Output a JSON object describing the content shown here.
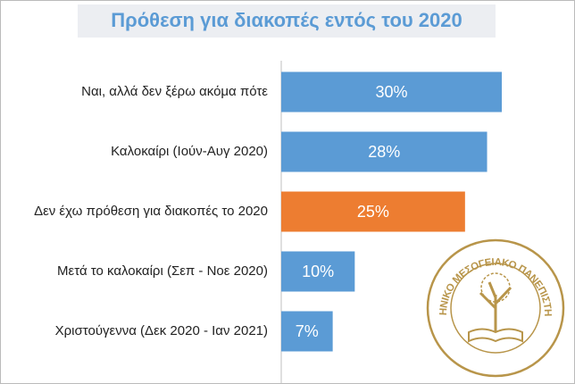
{
  "chart_data": {
    "type": "bar",
    "orientation": "horizontal",
    "title": "Πρόθεση για διακοπές εντός του 2020",
    "categories": [
      "Ναι, αλλά δεν ξέρω ακόμα πότε",
      "Καλοκαίρι (Ιούν-Αυγ 2020)",
      "Δεν έχω πρόθεση για διακοπές το 2020",
      "Μετά το καλοκαίρι (Σεπ - Νοε 2020)",
      "Χριστούγεννα (Δεκ 2020 - Ιαν 2021)"
    ],
    "values": [
      30,
      28,
      25,
      10,
      7
    ],
    "value_labels": [
      "30%",
      "28%",
      "25%",
      "10%",
      "7%"
    ],
    "colors": [
      "#5b9bd5",
      "#5b9bd5",
      "#ed7d31",
      "#5b9bd5",
      "#5b9bd5"
    ]
  },
  "logo": {
    "text": "ΕΛΛΗΝΙΚΟ ΜΕΣΟΓΕΙΑΚΟ ΠΑΝΕΠΙΣΤΗΜΙΟ",
    "color": "#b8954a"
  }
}
